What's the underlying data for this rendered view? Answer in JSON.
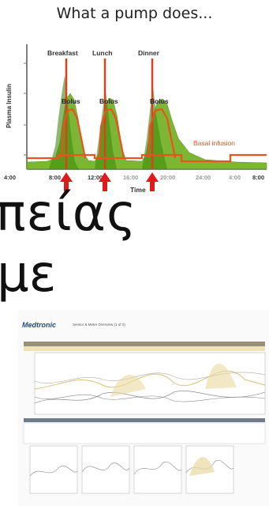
{
  "slide": {
    "title": "What a pump does...",
    "greek_line1": "πείας",
    "greek_line2": "με"
  },
  "pump_chart": {
    "meals": [
      "Breakfast",
      "Lunch",
      "Dinner"
    ],
    "bolus_label": "Bolus",
    "ylabel": "Plasma Insulin",
    "xlabel": "Time",
    "basal_label": "Basal infusion",
    "ticks": [
      "4:00",
      "8:00",
      "12:00",
      "16:00",
      "20:00",
      "24:00",
      "4:00",
      "8:00"
    ],
    "colors": {
      "insulin": "#6fae1f",
      "line": "#e8531e",
      "arrow": "#e01b1b",
      "vertical": "#d9431c"
    }
  },
  "report": {
    "brand": "Medtronic",
    "header": "Sensor & Meter Overview (1 of 2)"
  }
}
